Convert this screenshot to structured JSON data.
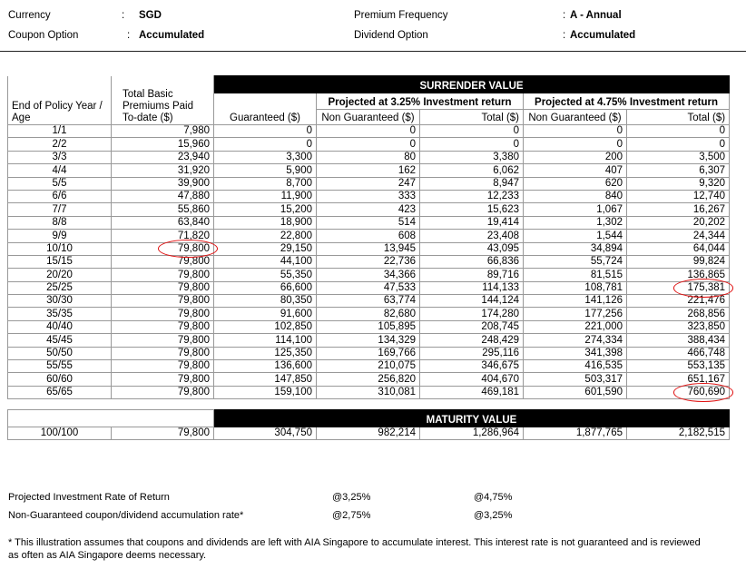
{
  "header": {
    "currency_label": "Currency",
    "currency_value": "SGD",
    "coupon_label": "Coupon Option",
    "coupon_value": "Accumulated",
    "premium_freq_label": "Premium Frequency",
    "premium_freq_value": "A - Annual",
    "dividend_label": "Dividend Option",
    "dividend_value": "Accumulated",
    "separator": ":"
  },
  "table": {
    "col_year": "End of Policy Year / Age",
    "col_premiums": "Total Basic Premiums Paid To-date ($)",
    "surrender_title": "SURRENDER VALUE",
    "col_guaranteed": "Guaranteed ($)",
    "proj1_title": "Projected at 3.25% Investment return",
    "proj2_title": "Projected at 4.75% Investment return",
    "col_non_guaranteed": "Non Guaranteed ($)",
    "col_total": "Total ($)",
    "rows": [
      [
        "1/1",
        "7,980",
        "0",
        "0",
        "0",
        "0",
        "0"
      ],
      [
        "2/2",
        "15,960",
        "0",
        "0",
        "0",
        "0",
        "0"
      ],
      [
        "3/3",
        "23,940",
        "3,300",
        "80",
        "3,380",
        "200",
        "3,500"
      ],
      [
        "4/4",
        "31,920",
        "5,900",
        "162",
        "6,062",
        "407",
        "6,307"
      ],
      [
        "5/5",
        "39,900",
        "8,700",
        "247",
        "8,947",
        "620",
        "9,320"
      ],
      [
        "6/6",
        "47,880",
        "11,900",
        "333",
        "12,233",
        "840",
        "12,740"
      ],
      [
        "7/7",
        "55,860",
        "15,200",
        "423",
        "15,623",
        "1,067",
        "16,267"
      ],
      [
        "8/8",
        "63,840",
        "18,900",
        "514",
        "19,414",
        "1,302",
        "20,202"
      ],
      [
        "9/9",
        "71,820",
        "22,800",
        "608",
        "23,408",
        "1,544",
        "24,344"
      ],
      [
        "10/10",
        "79,800",
        "29,150",
        "13,945",
        "43,095",
        "34,894",
        "64,044"
      ],
      [
        "15/15",
        "79,800",
        "44,100",
        "22,736",
        "66,836",
        "55,724",
        "99,824"
      ],
      [
        "20/20",
        "79,800",
        "55,350",
        "34,366",
        "89,716",
        "81,515",
        "136,865"
      ],
      [
        "25/25",
        "79,800",
        "66,600",
        "47,533",
        "114,133",
        "108,781",
        "175,381"
      ],
      [
        "30/30",
        "79,800",
        "80,350",
        "63,774",
        "144,124",
        "141,126",
        "221,476"
      ],
      [
        "35/35",
        "79,800",
        "91,600",
        "82,680",
        "174,280",
        "177,256",
        "268,856"
      ],
      [
        "40/40",
        "79,800",
        "102,850",
        "105,895",
        "208,745",
        "221,000",
        "323,850"
      ],
      [
        "45/45",
        "79,800",
        "114,100",
        "134,329",
        "248,429",
        "274,334",
        "388,434"
      ],
      [
        "50/50",
        "79,800",
        "125,350",
        "169,766",
        "295,116",
        "341,398",
        "466,748"
      ],
      [
        "55/55",
        "79,800",
        "136,600",
        "210,075",
        "346,675",
        "416,535",
        "553,135"
      ],
      [
        "60/60",
        "79,800",
        "147,850",
        "256,820",
        "404,670",
        "503,317",
        "651,167"
      ],
      [
        "65/65",
        "79,800",
        "159,100",
        "310,081",
        "469,181",
        "601,590",
        "760,690"
      ]
    ],
    "highlights": [
      [
        9,
        1
      ],
      [
        12,
        6
      ],
      [
        20,
        6
      ]
    ],
    "highlight_color": "#e01010"
  },
  "maturity": {
    "title": "MATURITY VALUE",
    "row": [
      "100/100",
      "79,800",
      "304,750",
      "982,214",
      "1,286,964",
      "1,877,765",
      "2,182,515"
    ]
  },
  "footer": {
    "rate_label": "Projected Investment Rate of Return",
    "rate_1": "@3,25%",
    "rate_2": "@4,75%",
    "accum_label": "Non-Guaranteed coupon/dividend accumulation rate*",
    "accum_1": "@2,75%",
    "accum_2": "@3,25%",
    "note": "* This illustration assumes that coupons and dividends are left with AIA Singapore to accumulate interest. This interest rate is not guaranteed and is reviewed as often as AIA Singapore deems necessary."
  }
}
